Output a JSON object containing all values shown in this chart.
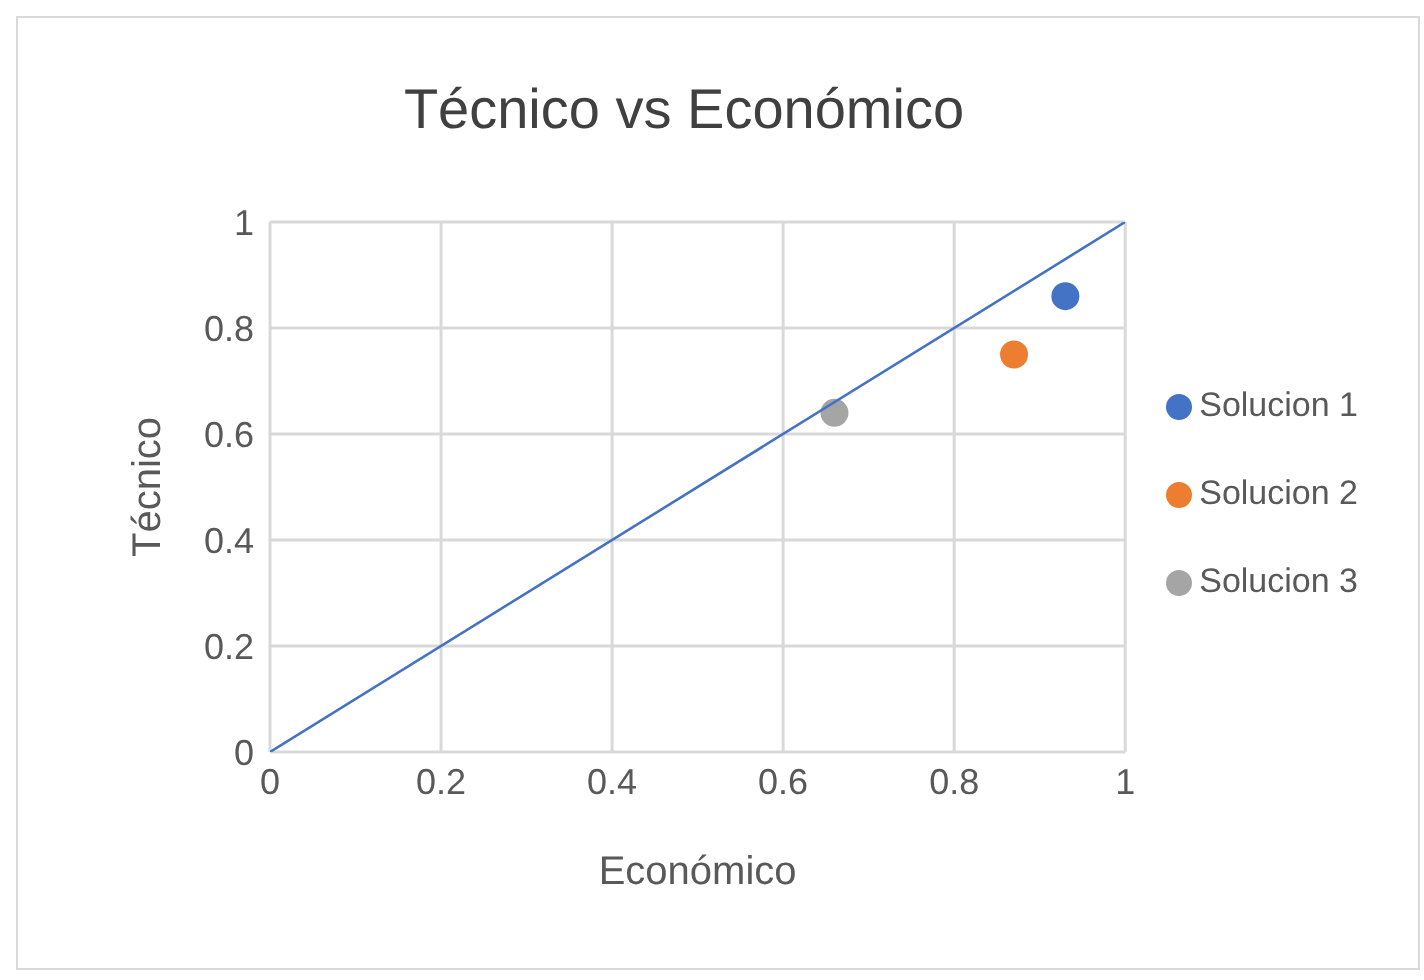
{
  "chart_data": {
    "type": "scatter",
    "title": "Técnico vs Económico",
    "xlabel": "Económico",
    "ylabel": "Técnico",
    "xlim": [
      0,
      1
    ],
    "ylim": [
      0,
      1
    ],
    "xticks": [
      0,
      0.2,
      0.4,
      0.6,
      0.8,
      1
    ],
    "yticks": [
      0,
      0.2,
      0.4,
      0.6,
      0.8,
      1
    ],
    "grid": true,
    "legend": "right",
    "marker": "circle",
    "series": [
      {
        "name": "Solucion 1",
        "color": "#4472c4",
        "x": [
          0.93
        ],
        "values": [
          0.86
        ]
      },
      {
        "name": "Solucion 2",
        "color": "#ed7d31",
        "x": [
          0.87
        ],
        "values": [
          0.75
        ]
      },
      {
        "name": "Solucion 3",
        "color": "#a5a5a5",
        "x": [
          0.66
        ],
        "values": [
          0.64
        ]
      },
      {
        "type": "line",
        "marker": "none",
        "color": "#4472c4",
        "x": [
          0,
          1
        ],
        "values": [
          0,
          1
        ]
      }
    ]
  }
}
